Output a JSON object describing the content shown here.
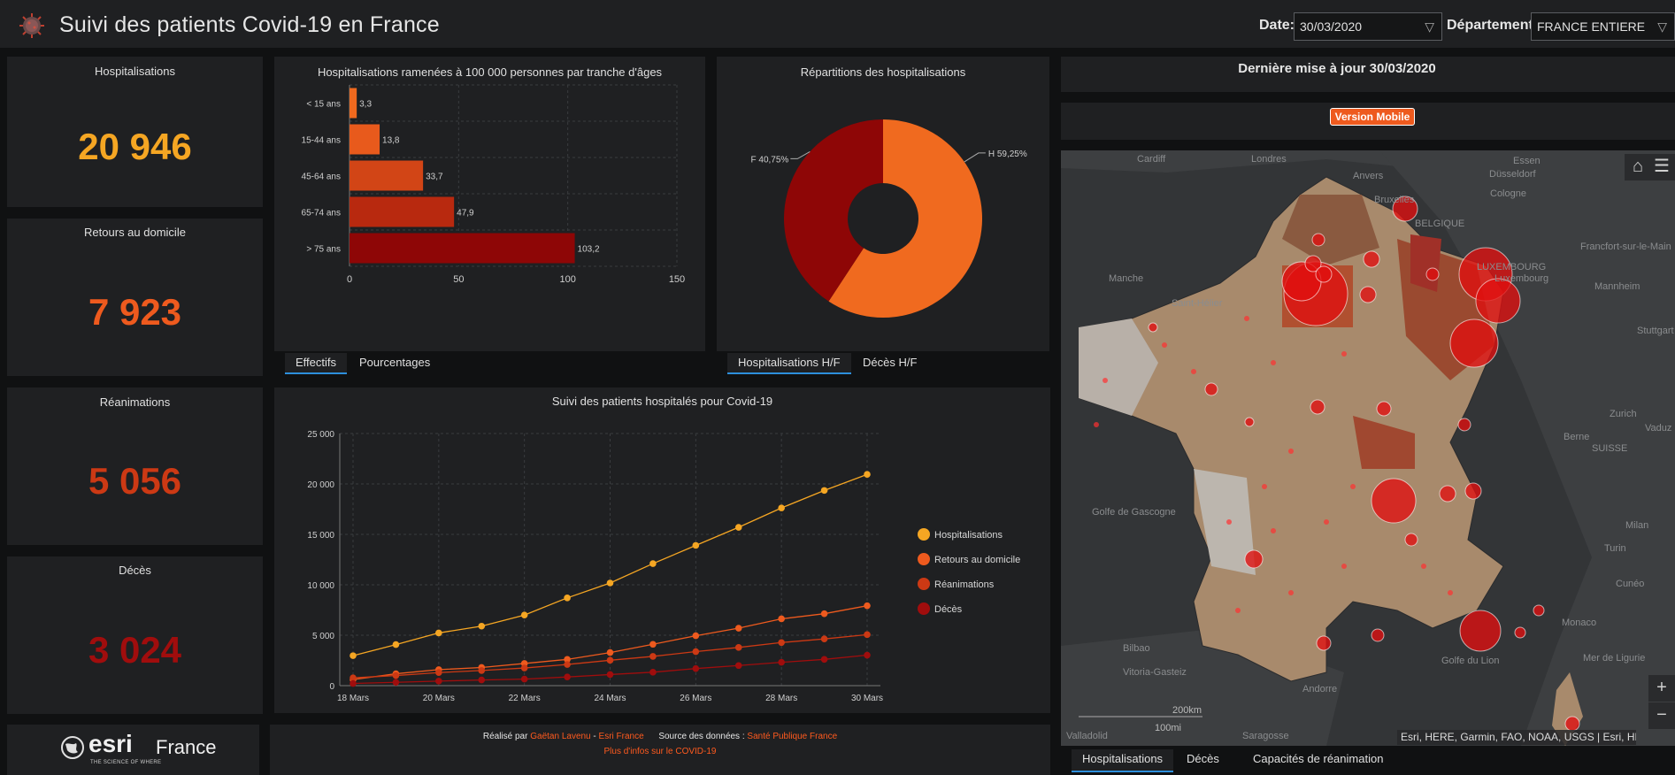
{
  "header": {
    "title": "Suivi des patients Covid-19 en France",
    "date_label": "Date:",
    "date_value": "30/03/2020",
    "dept_label": "Département:",
    "dept_value": "FRANCE ENTIERE",
    "chevron_icon": "chevron-down-icon",
    "logo_icon": "virus-icon"
  },
  "kpis": [
    {
      "label": "Hospitalisations",
      "value": "20 946",
      "color": "#f5a623"
    },
    {
      "label": "Retours au domicile",
      "value": "7 923",
      "color": "#ee5a1e"
    },
    {
      "label": "Réanimations",
      "value": "5 056",
      "color": "#cc3914"
    },
    {
      "label": "Décès",
      "value": "3 024",
      "color": "#a00d0d"
    }
  ],
  "age_chart": {
    "title": "Hospitalisations ramenées à 100 000 personnes par tranche d'âges",
    "tabs": [
      "Effectifs",
      "Pourcentages"
    ],
    "active_tab": 0
  },
  "pie_chart": {
    "title": "Répartitions des hospitalisations",
    "tabs": [
      "Hospitalisations H/F",
      "Décès H/F"
    ],
    "active_tab": 0
  },
  "line_chart": {
    "title": "Suivi des patients hospitalés pour Covid-19"
  },
  "update": {
    "text": "Dernière mise à jour 30/03/2020",
    "mobile_button": "Version Mobile"
  },
  "map": {
    "labels": {
      "cities": [
        "Cardiff",
        "Londres",
        "Essen",
        "Anvers",
        "Düsseldorf",
        "Bruxelles",
        "Cologne",
        "BELGIQUE",
        "Francfort-sur-le-Main",
        "LUXEMBOURG",
        "Luxembourg",
        "Mannheim",
        "Stuttgart",
        "Zurich",
        "Berne",
        "SUISSE",
        "Vaduz",
        "Milan",
        "Turin",
        "Cunéo",
        "Monaco",
        "Mer de Ligurie",
        "Golfe de Gascogne",
        "Bilbao",
        "Vitoria-Gasteiz",
        "Andorre",
        "Saragosse",
        "Valladolid",
        "Golfe du Lion",
        "Manche",
        "Saint-Hélier"
      ],
      "scale_km": "200km",
      "scale_mi": "100mi"
    },
    "attribution": "Esri, HERE, Garmin, FAO, NOAA, USGS | Esri, HER...",
    "home_icon": "home-icon",
    "list_icon": "list-icon",
    "zoom_in": "+",
    "zoom_out": "−",
    "tabs": [
      "Hospitalisations",
      "Décès",
      "Capacités de réanimation"
    ],
    "active_tab": 0
  },
  "footer": {
    "brand": "esri",
    "brand_country": "France",
    "brand_tagline": "THE SCIENCE OF WHERE",
    "made_by_label": "Réalisé par",
    "author": "Gaëtan Lavenu",
    "separator": "-",
    "org": "Esri France",
    "source_label": "Source des données :",
    "source": "Santé Publique France",
    "more_info": "Plus d'infos sur le COVID-19"
  },
  "chart_data": [
    {
      "type": "bar",
      "orientation": "horizontal",
      "title": "Hospitalisations ramenées à 100 000 personnes par tranche d'âges",
      "categories": [
        "< 15 ans",
        "15-44 ans",
        "45-64 ans",
        "65-74 ans",
        "> 75 ans"
      ],
      "values": [
        3.3,
        13.8,
        33.7,
        47.9,
        103.2
      ],
      "value_labels": [
        "3,3",
        "13,8",
        "33,7",
        "47,9",
        "103,2"
      ],
      "colors": [
        "#f0691e",
        "#e85a1c",
        "#d24516",
        "#b8290f",
        "#8e0606"
      ],
      "xlim": [
        0,
        150
      ],
      "xticks": [
        0,
        50,
        100,
        150
      ],
      "grid": true
    },
    {
      "type": "pie",
      "title": "Répartitions des hospitalisations",
      "labels": [
        "H",
        "F"
      ],
      "values": [
        59.25,
        40.75
      ],
      "slice_labels": [
        "H 59,25%",
        "F 40,75%"
      ],
      "colors": [
        "#f06a1f",
        "#8e0606"
      ],
      "donut": true
    },
    {
      "type": "line",
      "title": "Suivi des patients hospitalés pour Covid-19",
      "x": [
        "18 Mars",
        "19 Mars",
        "20 Mars",
        "21 Mars",
        "22 Mars",
        "23 Mars",
        "24 Mars",
        "25 Mars",
        "26 Mars",
        "27 Mars",
        "28 Mars",
        "29 Mars",
        "30 Mars"
      ],
      "xtick_labels": [
        "18 Mars",
        "20 Mars",
        "22 Mars",
        "24 Mars",
        "26 Mars",
        "28 Mars",
        "30 Mars"
      ],
      "ylim": [
        0,
        25000
      ],
      "yticks": [
        0,
        5000,
        10000,
        15000,
        20000,
        25000
      ],
      "ytick_labels": [
        "0",
        "5 000",
        "10 000",
        "15 000",
        "20 000",
        "25 000"
      ],
      "grid": true,
      "legend_position": "right",
      "series": [
        {
          "name": "Hospitalisations",
          "color": "#f5a623",
          "values": [
            2972,
            4073,
            5226,
            5900,
            7000,
            8700,
            10176,
            12100,
            13904,
            15700,
            17620,
            19354,
            20946
          ]
        },
        {
          "name": "Retours au domicile",
          "color": "#ee5a1e",
          "values": [
            602,
            1180,
            1587,
            1800,
            2200,
            2600,
            3281,
            4100,
            4948,
            5700,
            6624,
            7132,
            7923
          ]
        },
        {
          "name": "Réanimations",
          "color": "#cc3914",
          "values": [
            771,
            1002,
            1297,
            1500,
            1750,
            2100,
            2516,
            2900,
            3375,
            3787,
            4273,
            4632,
            5056
          ]
        },
        {
          "name": "Décès",
          "color": "#a00d0d",
          "values": [
            218,
            327,
            450,
            562,
            650,
            860,
            1100,
            1331,
            1696,
            1995,
            2314,
            2606,
            3024
          ]
        }
      ]
    }
  ]
}
